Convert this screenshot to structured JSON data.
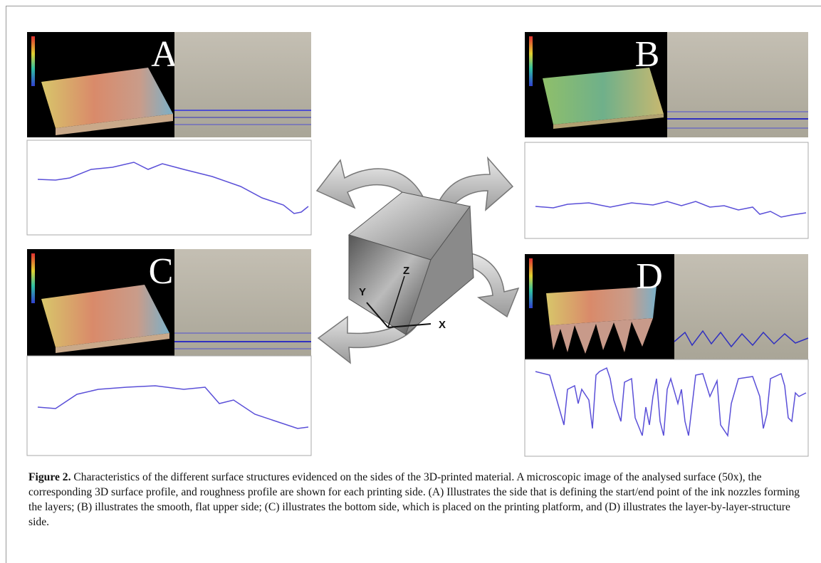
{
  "panels": [
    {
      "label": "A"
    },
    {
      "label": "B"
    },
    {
      "label": "C"
    },
    {
      "label": "D"
    }
  ],
  "axes": {
    "x": "X",
    "y": "Y",
    "z": "Z"
  },
  "caption": {
    "label": "Figure 2.",
    "text": " Characteristics of the different surface structures evidenced on the sides of the 3D-printed material. A microscopic image of the analysed surface (50x), the corresponding 3D surface profile, and roughness profile are shown for each printing side. (A) Illustrates the side that is defining the start/end point of the ink nozzles forming the layers; (B) illustrates the smooth, flat upper side; (C) illustrates the bottom side, which is placed on the printing platform, and (D) illustrates the layer-by-layer-structure side."
  }
}
